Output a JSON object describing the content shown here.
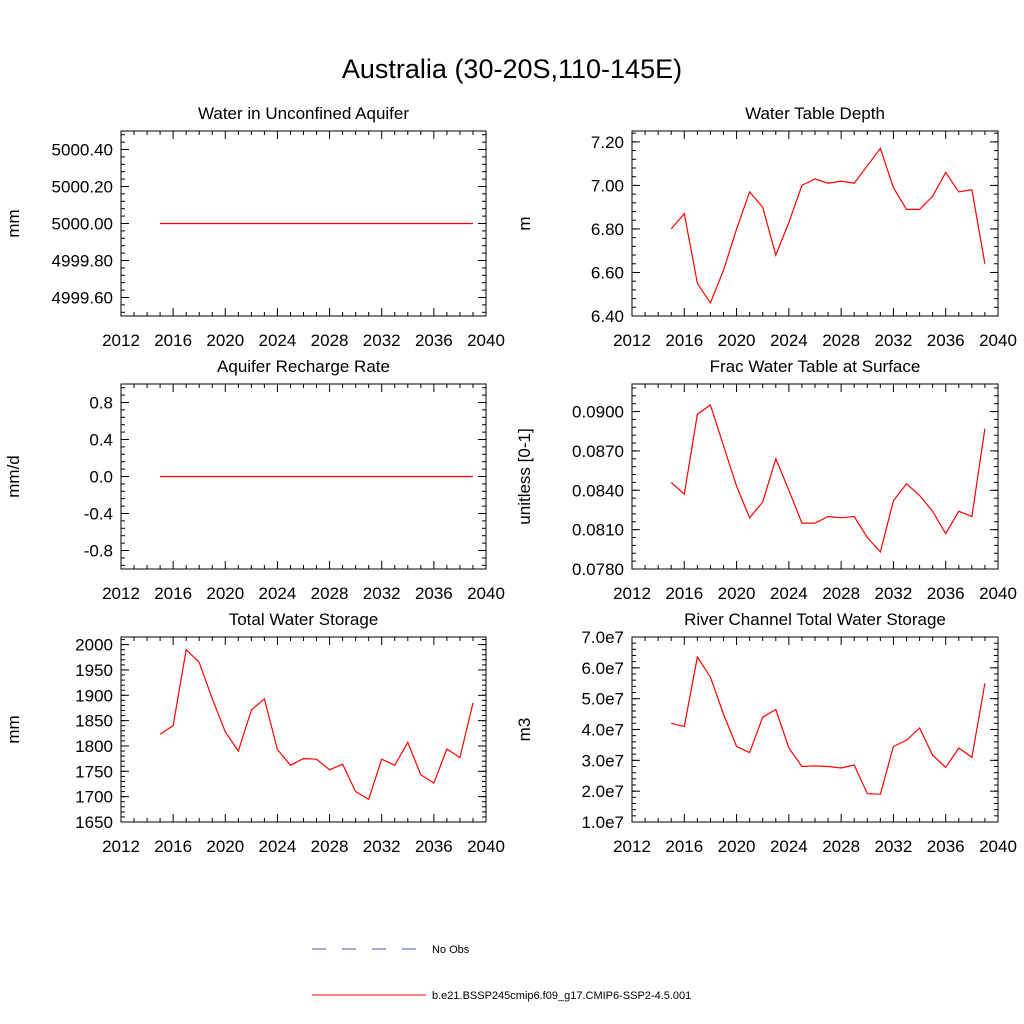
{
  "title": "Australia (30-20S,110-145E)",
  "colors": {
    "series": "#ff0000",
    "no_obs": "#4a5aa8",
    "axis": "#000000"
  },
  "legend": {
    "no_obs_label": "No Obs",
    "run_label": "b.e21.BSSP245cmip6.f09_g17.CMIP6-SSP2-4.5.001"
  },
  "chart_data": [
    {
      "type": "line",
      "title": "Water in Unconfined Aquifer",
      "ylabel": "mm",
      "xlim": [
        2012,
        2040
      ],
      "ylim": [
        4999.5,
        5000.5
      ],
      "xticks": [
        2012,
        2016,
        2020,
        2024,
        2028,
        2032,
        2036,
        2040
      ],
      "xtick_labels": [
        "2012",
        "2016",
        "2020",
        "2024",
        "2028",
        "2032",
        "2036",
        "2040"
      ],
      "yticks": [
        4999.6,
        4999.8,
        5000.0,
        5000.2,
        5000.4
      ],
      "ytick_labels": [
        "4999.60",
        "4999.80",
        "5000.00",
        "5000.20",
        "5000.40"
      ],
      "x": [
        2015,
        2016,
        2017,
        2018,
        2019,
        2020,
        2021,
        2022,
        2023,
        2024,
        2025,
        2026,
        2027,
        2028,
        2029,
        2030,
        2031,
        2032,
        2033,
        2034,
        2035,
        2036,
        2037,
        2038,
        2039
      ],
      "series": [
        {
          "values": [
            5000,
            5000,
            5000,
            5000,
            5000,
            5000,
            5000,
            5000,
            5000,
            5000,
            5000,
            5000,
            5000,
            5000,
            5000,
            5000,
            5000,
            5000,
            5000,
            5000,
            5000,
            5000,
            5000,
            5000,
            5000
          ]
        }
      ]
    },
    {
      "type": "line",
      "title": "Water Table Depth",
      "ylabel": "m",
      "xlim": [
        2012,
        2040
      ],
      "ylim": [
        6.4,
        7.25
      ],
      "xticks": [
        2012,
        2016,
        2020,
        2024,
        2028,
        2032,
        2036,
        2040
      ],
      "xtick_labels": [
        "2012",
        "2016",
        "2020",
        "2024",
        "2028",
        "2032",
        "2036",
        "2040"
      ],
      "yticks": [
        6.4,
        6.6,
        6.8,
        7.0,
        7.2
      ],
      "ytick_labels": [
        "6.40",
        "6.60",
        "6.80",
        "7.00",
        "7.20"
      ],
      "x": [
        2015,
        2016,
        2017,
        2018,
        2019,
        2020,
        2021,
        2022,
        2023,
        2024,
        2025,
        2026,
        2027,
        2028,
        2029,
        2030,
        2031,
        2032,
        2033,
        2034,
        2035,
        2036,
        2037,
        2038,
        2039
      ],
      "series": [
        {
          "values": [
            6.8,
            6.87,
            6.55,
            6.46,
            6.61,
            6.8,
            6.97,
            6.9,
            6.68,
            6.83,
            7.0,
            7.03,
            7.01,
            7.02,
            7.01,
            7.09,
            7.17,
            6.99,
            6.89,
            6.89,
            6.95,
            7.06,
            6.97,
            6.98,
            6.64
          ]
        }
      ]
    },
    {
      "type": "line",
      "title": "Aquifer Recharge Rate",
      "ylabel": "mm/d",
      "xlim": [
        2012,
        2040
      ],
      "ylim": [
        -1.0,
        1.0
      ],
      "xticks": [
        2012,
        2016,
        2020,
        2024,
        2028,
        2032,
        2036,
        2040
      ],
      "xtick_labels": [
        "2012",
        "2016",
        "2020",
        "2024",
        "2028",
        "2032",
        "2036",
        "2040"
      ],
      "yticks": [
        -0.8,
        -0.4,
        0.0,
        0.4,
        0.8
      ],
      "ytick_labels": [
        "-0.8",
        "-0.4",
        "0.0",
        "0.4",
        "0.8"
      ],
      "x": [
        2015,
        2016,
        2017,
        2018,
        2019,
        2020,
        2021,
        2022,
        2023,
        2024,
        2025,
        2026,
        2027,
        2028,
        2029,
        2030,
        2031,
        2032,
        2033,
        2034,
        2035,
        2036,
        2037,
        2038,
        2039
      ],
      "series": [
        {
          "values": [
            0,
            0,
            0,
            0,
            0,
            0,
            0,
            0,
            0,
            0,
            0,
            0,
            0,
            0,
            0,
            0,
            0,
            0,
            0,
            0,
            0,
            0,
            0,
            0,
            0
          ]
        }
      ]
    },
    {
      "type": "line",
      "title": "Frac Water Table at Surface",
      "ylabel": "unitless [0-1]",
      "xlim": [
        2012,
        2040
      ],
      "ylim": [
        0.078,
        0.0921
      ],
      "xticks": [
        2012,
        2016,
        2020,
        2024,
        2028,
        2032,
        2036,
        2040
      ],
      "xtick_labels": [
        "2012",
        "2016",
        "2020",
        "2024",
        "2028",
        "2032",
        "2036",
        "2040"
      ],
      "yticks": [
        0.078,
        0.081,
        0.084,
        0.087,
        0.09
      ],
      "ytick_labels": [
        "0.0780",
        "0.0810",
        "0.0840",
        "0.0870",
        "0.0900"
      ],
      "x": [
        2015,
        2016,
        2017,
        2018,
        2019,
        2020,
        2021,
        2022,
        2023,
        2024,
        2025,
        2026,
        2027,
        2028,
        2029,
        2030,
        2031,
        2032,
        2033,
        2034,
        2035,
        2036,
        2037,
        2038,
        2039
      ],
      "series": [
        {
          "values": [
            0.0846,
            0.0837,
            0.0898,
            0.0905,
            0.0874,
            0.0843,
            0.0819,
            0.0831,
            0.0864,
            0.084,
            0.0815,
            0.0815,
            0.082,
            0.0819,
            0.082,
            0.0804,
            0.0793,
            0.0832,
            0.0845,
            0.0836,
            0.0824,
            0.0807,
            0.0824,
            0.082,
            0.0887
          ]
        }
      ]
    },
    {
      "type": "line",
      "title": "Total Water Storage",
      "ylabel": "mm",
      "xlim": [
        2012,
        2040
      ],
      "ylim": [
        1650,
        2015
      ],
      "xticks": [
        2012,
        2016,
        2020,
        2024,
        2028,
        2032,
        2036,
        2040
      ],
      "xtick_labels": [
        "2012",
        "2016",
        "2020",
        "2024",
        "2028",
        "2032",
        "2036",
        "2040"
      ],
      "yticks": [
        1650,
        1700,
        1750,
        1800,
        1850,
        1900,
        1950,
        2000
      ],
      "ytick_labels": [
        "1650",
        "1700",
        "1750",
        "1800",
        "1850",
        "1900",
        "1950",
        "2000"
      ],
      "x": [
        2015,
        2016,
        2017,
        2018,
        2019,
        2020,
        2021,
        2022,
        2023,
        2024,
        2025,
        2026,
        2027,
        2028,
        2029,
        2030,
        2031,
        2032,
        2033,
        2034,
        2035,
        2036,
        2037,
        2038,
        2039
      ],
      "series": [
        {
          "values": [
            1823,
            1840,
            1990,
            1965,
            1893,
            1828,
            1790,
            1871,
            1893,
            1793,
            1762,
            1775,
            1774,
            1753,
            1764,
            1710,
            1695,
            1774,
            1762,
            1807,
            1743,
            1727,
            1794,
            1777,
            1885
          ]
        }
      ]
    },
    {
      "type": "line",
      "title": "River Channel Total Water Storage",
      "ylabel": "m3",
      "xlim": [
        2012,
        2040
      ],
      "ylim": [
        10000000,
        70000000
      ],
      "xticks": [
        2012,
        2016,
        2020,
        2024,
        2028,
        2032,
        2036,
        2040
      ],
      "xtick_labels": [
        "2012",
        "2016",
        "2020",
        "2024",
        "2028",
        "2032",
        "2036",
        "2040"
      ],
      "yticks": [
        10000000,
        20000000,
        30000000,
        40000000,
        50000000,
        60000000,
        70000000
      ],
      "ytick_labels": [
        "1.0e7",
        "2.0e7",
        "3.0e7",
        "4.0e7",
        "5.0e7",
        "6.0e7",
        "7.0e7"
      ],
      "x": [
        2015,
        2016,
        2017,
        2018,
        2019,
        2020,
        2021,
        2022,
        2023,
        2024,
        2025,
        2026,
        2027,
        2028,
        2029,
        2030,
        2031,
        2032,
        2033,
        2034,
        2035,
        2036,
        2037,
        2038,
        2039
      ],
      "series": [
        {
          "values": [
            42000000,
            41000000,
            63500000,
            57000000,
            45000000,
            34500000,
            32500000,
            44000000,
            46500000,
            34000000,
            28000000,
            28200000,
            28000000,
            27500000,
            28500000,
            19200000,
            19000000,
            34500000,
            36500000,
            40500000,
            31700000,
            27700000,
            34000000,
            31000000,
            55000000
          ]
        }
      ]
    }
  ]
}
